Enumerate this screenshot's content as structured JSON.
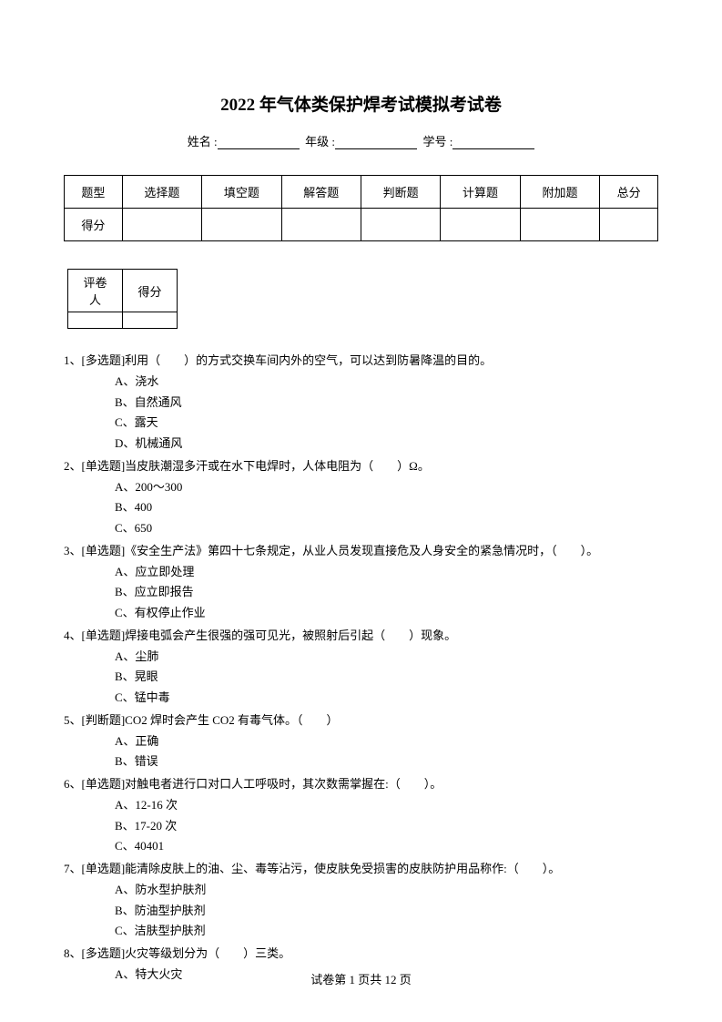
{
  "title": "2022 年气体类保护焊考试模拟考试卷",
  "info": {
    "name_label": "姓名 :",
    "grade_label": "年级 :",
    "id_label": "学号 :"
  },
  "score_table": {
    "headers": [
      "题型",
      "选择题",
      "填空题",
      "解答题",
      "判断题",
      "计算题",
      "附加题",
      "总分"
    ],
    "row_label": "得分"
  },
  "grader_table": {
    "headers": [
      "评卷人",
      "得分"
    ]
  },
  "questions": [
    {
      "num": "1、",
      "text": "[多选题]利用（　　）的方式交换车间内外的空气，可以达到防暑降温的目的。",
      "options": [
        "A、浇水",
        "B、自然通风",
        "C、露天",
        "D、机械通风"
      ]
    },
    {
      "num": "2、",
      "text": "[单选题]当皮肤潮湿多汗或在水下电焊时，人体电阻为（　　）Ω。",
      "options": [
        "A、200～300",
        "B、400",
        "C、650"
      ]
    },
    {
      "num": "3、",
      "text": "[单选题]《安全生产法》第四十七条规定，从业人员发现直接危及人身安全的紧急情况时，（　　）。",
      "options": [
        "A、应立即处理",
        "B、应立即报告",
        "C、有权停止作业"
      ]
    },
    {
      "num": "4、",
      "text": "[单选题]焊接电弧会产生很强的强可见光，被照射后引起（　　）现象。",
      "options": [
        "A、尘肺",
        "B、晃眼",
        "C、锰中毒"
      ]
    },
    {
      "num": "5、",
      "text": "[判断题]CO2 焊时会产生 CO2 有毒气体。（　　）",
      "options": [
        "A、正确",
        "B、错误"
      ]
    },
    {
      "num": "6、",
      "text": "[单选题]对触电者进行口对口人工呼吸时，其次数需掌握在:（　　）。",
      "options": [
        "A、12-16 次",
        "B、17-20 次",
        "C、40401"
      ]
    },
    {
      "num": "7、",
      "text": "[单选题]能清除皮肤上的油、尘、毒等沾污，使皮肤免受损害的皮肤防护用品称作:（　　）。",
      "options": [
        "A、防水型护肤剂",
        "B、防油型护肤剂",
        "C、洁肤型护肤剂"
      ]
    },
    {
      "num": "8、",
      "text": "[多选题]火灾等级划分为（　　）三类。",
      "options": [
        "A、特大火灾"
      ]
    }
  ],
  "footer": {
    "prefix": "试卷第 ",
    "page": "1",
    "mid": " 页共 ",
    "total": "12",
    "suffix": " 页"
  }
}
